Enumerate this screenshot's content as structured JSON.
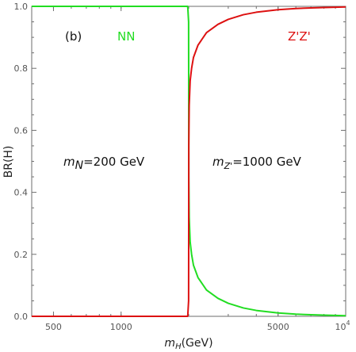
{
  "chart_data": {
    "type": "line",
    "title": "",
    "panel_label": "(b)",
    "xlabel_main": "m",
    "xlabel_sub": "H",
    "xlabel_unit": "(GeV)",
    "ylabel": "BR(H)",
    "xscale": "log",
    "xlim": [
      400,
      10000
    ],
    "ylim": [
      0,
      1
    ],
    "grid": false,
    "x_ticks": [
      {
        "value": 500,
        "label": "500"
      },
      {
        "value": 1000,
        "label": "1000"
      },
      {
        "value": 5000,
        "label": "5000"
      },
      {
        "value": 10000,
        "label": "10",
        "sup": "4"
      }
    ],
    "y_ticks": [
      {
        "value": 0,
        "label": "0.0"
      },
      {
        "value": 0.2,
        "label": "0.2"
      },
      {
        "value": 0.4,
        "label": "0.4"
      },
      {
        "value": 0.6,
        "label": "0.6"
      },
      {
        "value": 0.8,
        "label": "0.8"
      },
      {
        "value": 1.0,
        "label": "1.0"
      }
    ],
    "annotations": {
      "mN": {
        "main": "m",
        "sub": "N",
        "rest": "=200 GeV"
      },
      "mZ": {
        "main": "m",
        "sub": "Z'",
        "rest": "=1000 GeV"
      }
    },
    "series": [
      {
        "name": "NN",
        "color": "#22dd22",
        "x": [
          400,
          1900,
          1980,
          1998,
          2000,
          2002,
          2010,
          2030,
          2060,
          2100,
          2200,
          2400,
          2700,
          3000,
          3500,
          4000,
          5000,
          6000,
          7000,
          8000,
          9000,
          10000
        ],
        "y": [
          1.0,
          1.0,
          1.0,
          0.95,
          0.72,
          0.45,
          0.32,
          0.24,
          0.2,
          0.165,
          0.125,
          0.085,
          0.058,
          0.042,
          0.027,
          0.019,
          0.011,
          0.007,
          0.005,
          0.004,
          0.003,
          0.002
        ]
      },
      {
        "name": "Z'Z'",
        "color": "#dd1111",
        "x": [
          400,
          1900,
          1980,
          1998,
          2000,
          2002,
          2010,
          2030,
          2060,
          2100,
          2200,
          2400,
          2700,
          3000,
          3500,
          4000,
          5000,
          6000,
          7000,
          8000,
          9000,
          10000
        ],
        "y": [
          0.0,
          0.0,
          0.0,
          0.05,
          0.28,
          0.55,
          0.68,
          0.76,
          0.8,
          0.835,
          0.875,
          0.915,
          0.942,
          0.958,
          0.973,
          0.981,
          0.989,
          0.993,
          0.995,
          0.996,
          0.997,
          0.998
        ]
      }
    ]
  }
}
